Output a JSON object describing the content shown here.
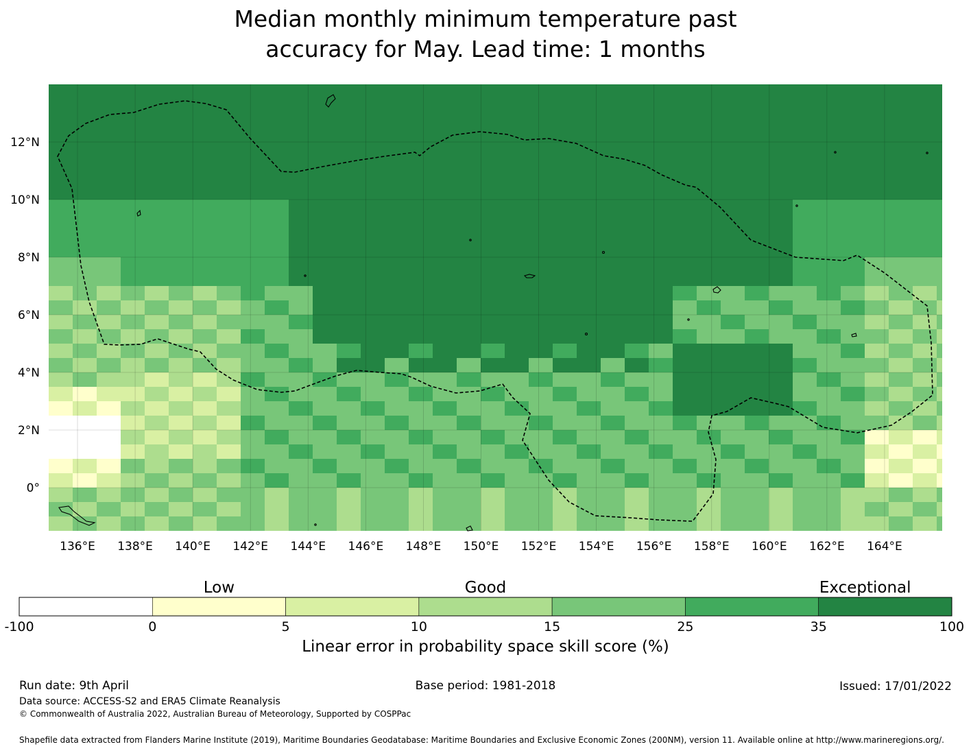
{
  "title_line1": "Median monthly minimum temperature past",
  "title_line2": "accuracy for May. Lead time: 1 months",
  "map": {
    "x_ticks": [
      "136°E",
      "138°E",
      "140°E",
      "142°E",
      "144°E",
      "146°E",
      "148°E",
      "150°E",
      "152°E",
      "154°E",
      "156°E",
      "158°E",
      "160°E",
      "162°E",
      "164°E"
    ],
    "y_ticks": [
      "12°N",
      "10°N",
      "8°N",
      "6°N",
      "4°N",
      "2°N",
      "0°"
    ],
    "lon_range": [
      135,
      166
    ],
    "lat_range": [
      -1.5,
      14
    ],
    "cell_size_deg": 0.833,
    "colors": [
      "#ffffff",
      "#ffffcc",
      "#d9f0a3",
      "#addd8e",
      "#78c679",
      "#41ab5d",
      "#238443"
    ]
  },
  "colorbar": {
    "categories": [
      "Low",
      "Good",
      "Exceptional"
    ],
    "ticks": [
      "-100",
      "0",
      "5",
      "10",
      "15",
      "25",
      "35",
      "100"
    ],
    "colors": [
      "#ffffff",
      "#ffffcc",
      "#d9f0a3",
      "#addd8e",
      "#78c679",
      "#41ab5d",
      "#238443"
    ],
    "label": "Linear error in probability space skill score (%)"
  },
  "footer": {
    "run_date": "Run date: 9th April",
    "base_period": "Base period: 1981-2018",
    "issued": "Issued: 17/01/2022",
    "data_source": "Data source: ACCESS-S2 and ERA5 Climate Reanalysis",
    "copyright": "© Commonwealth of Australia 2022, Australian Bureau of Meteorology, Supported by COSPPac",
    "shapefile": "Shapefile data extracted from Flanders Marine Institute (2019), Maritime Boundaries Geodatabase: Maritime Boundaries and Exclusive Economic Zones (200NM), version 11. Available online at http://www.marineregions.org/."
  }
}
